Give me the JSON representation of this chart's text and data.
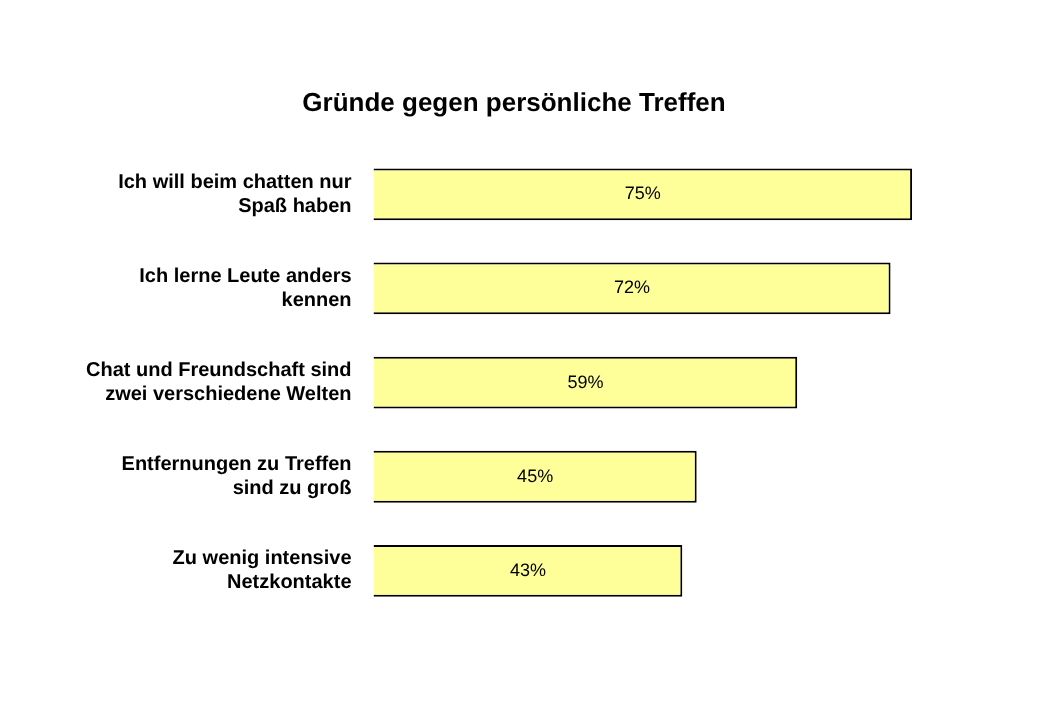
{
  "chart_data": {
    "type": "bar",
    "orientation": "horizontal",
    "title": "Gründe gegen persönliche Treffen",
    "categories": [
      "Ich will beim chatten nur Spaß haben",
      "Ich lerne Leute anders kennen",
      "Chat und Freundschaft sind zwei verschiedene Welten",
      "Entfernungen zu Treffen sind zu groß",
      "Zu wenig intensive Netzkontakte"
    ],
    "values": [
      75,
      72,
      59,
      45,
      43
    ],
    "value_labels": [
      "75%",
      "72%",
      "59%",
      "45%",
      "43%"
    ],
    "color": "#ffff99",
    "tick_labels": "y"
  }
}
